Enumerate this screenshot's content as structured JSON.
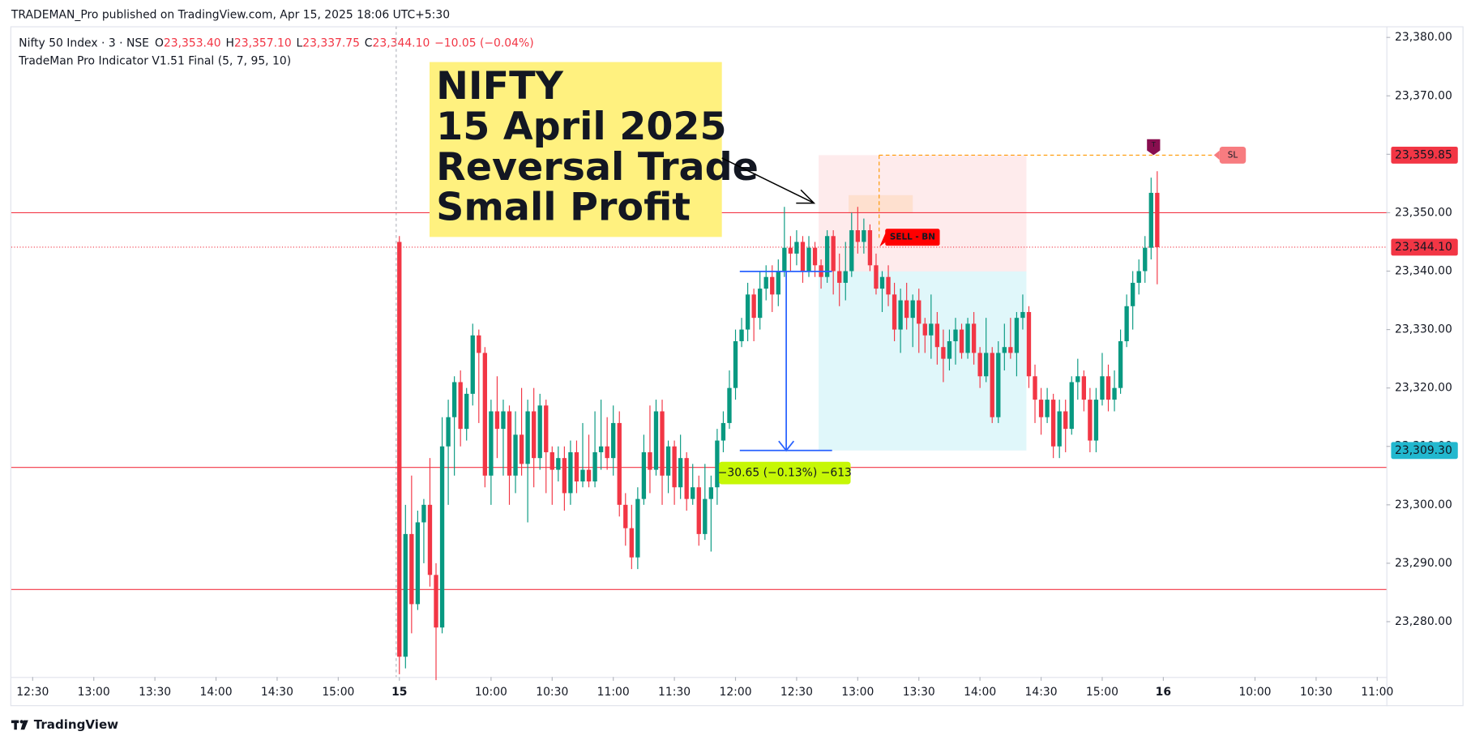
{
  "header": {
    "publisher": "TRADEMAN_Pro published on TradingView.com, Apr 15, 2025 18:06 UTC+5:30",
    "brand": "TradingView"
  },
  "chart_data": {
    "type": "candlestick",
    "symbol": "Nifty 50 Index · 3 · NSE",
    "legend_fields": [
      {
        "key": "O",
        "value": "23,353.40"
      },
      {
        "key": "H",
        "value": "23,357.10"
      },
      {
        "key": "L",
        "value": "23,337.75"
      },
      {
        "key": "C",
        "value": "23,344.10"
      }
    ],
    "change": "−10.05 (−0.04%)",
    "indicator": "TradeMan Pro Indicator V1.51 Final (5, 7, 95, 10)",
    "up_color": "#089981",
    "down_color": "#f23645",
    "ohlc": [
      [
        23345,
        23346,
        23271,
        23274
      ],
      [
        23274,
        23300,
        23272,
        23295
      ],
      [
        23295,
        23305,
        23278,
        23283
      ],
      [
        23283,
        23299,
        23282,
        23297
      ],
      [
        23297,
        23301,
        23290,
        23300
      ],
      [
        23300,
        23308,
        23286,
        23288
      ],
      [
        23288,
        23290,
        23270,
        23279
      ],
      [
        23279,
        23315,
        23278,
        23310
      ],
      [
        23310,
        23318,
        23300,
        23315
      ],
      [
        23315,
        23322,
        23305,
        23321
      ],
      [
        23321,
        23323,
        23310,
        23313
      ],
      [
        23313,
        23320,
        23311,
        23319
      ],
      [
        23319,
        23331,
        23317,
        23329
      ],
      [
        23329,
        23330,
        23314,
        23326
      ],
      [
        23326,
        23327,
        23303,
        23305
      ],
      [
        23305,
        23318,
        23300,
        23316
      ],
      [
        23316,
        23322,
        23308,
        23313
      ],
      [
        23313,
        23318,
        23305,
        23316
      ],
      [
        23316,
        23317,
        23300,
        23305
      ],
      [
        23305,
        23316,
        23302,
        23312
      ],
      [
        23312,
        23320,
        23305,
        23307
      ],
      [
        23307,
        23318,
        23297,
        23316
      ],
      [
        23316,
        23320,
        23303,
        23308
      ],
      [
        23308,
        23319,
        23306,
        23317
      ],
      [
        23317,
        23318,
        23302,
        23309
      ],
      [
        23309,
        23310,
        23300,
        23306
      ],
      [
        23306,
        23310,
        23304,
        23308
      ],
      [
        23308,
        23310,
        23299,
        23302
      ],
      [
        23302,
        23311,
        23300,
        23309
      ],
      [
        23309,
        23311,
        23302,
        23304
      ],
      [
        23304,
        23314,
        23303,
        23306
      ],
      [
        23306,
        23312,
        23303,
        23304
      ],
      [
        23304,
        23316,
        23303,
        23309
      ],
      [
        23309,
        23318,
        23306,
        23310
      ],
      [
        23310,
        23315,
        23306,
        23308
      ],
      [
        23308,
        23317,
        23305,
        23314
      ],
      [
        23314,
        23316,
        23298,
        23300
      ],
      [
        23300,
        23302,
        23293,
        23296
      ],
      [
        23296,
        23300,
        23289,
        23291
      ],
      [
        23291,
        23303,
        23289,
        23301
      ],
      [
        23301,
        23312,
        23300,
        23309
      ],
      [
        23309,
        23317,
        23302,
        23306
      ],
      [
        23306,
        23318,
        23305,
        23316
      ],
      [
        23316,
        23318,
        23300,
        23305
      ],
      [
        23305,
        23311,
        23302,
        23310
      ],
      [
        23310,
        23311,
        23300,
        23303
      ],
      [
        23303,
        23312,
        23301,
        23308
      ],
      [
        23308,
        23309,
        23299,
        23301
      ],
      [
        23301,
        23307,
        23300,
        23303
      ],
      [
        23303,
        23305,
        23293,
        23295
      ],
      [
        23295,
        23307,
        23294,
        23301
      ],
      [
        23301,
        23305,
        23292,
        23303
      ],
      [
        23303,
        23313,
        23300,
        23311
      ],
      [
        23311,
        23316,
        23309,
        23314
      ],
      [
        23314,
        23323,
        23313,
        23320
      ],
      [
        23320,
        23330,
        23318,
        23328
      ],
      [
        23328,
        23332,
        23327,
        23330
      ],
      [
        23330,
        23338,
        23328,
        23336
      ],
      [
        23336,
        23337,
        23328,
        23332
      ],
      [
        23332,
        23340,
        23330,
        23337
      ],
      [
        23337,
        23341,
        23335,
        23339
      ],
      [
        23339,
        23341,
        23333,
        23336
      ],
      [
        23336,
        23342,
        23334,
        23340
      ],
      [
        23340,
        23351,
        23339,
        23344
      ],
      [
        23344,
        23346,
        23340,
        23343
      ],
      [
        23343,
        23347,
        23341,
        23345
      ],
      [
        23345,
        23346,
        23338,
        23340
      ],
      [
        23340,
        23346,
        23339,
        23344
      ],
      [
        23344,
        23345,
        23339,
        23341
      ],
      [
        23341,
        23342,
        23337,
        23339
      ],
      [
        23339,
        23347,
        23338,
        23346
      ],
      [
        23346,
        23347,
        23336,
        23340
      ],
      [
        23340,
        23343,
        23334,
        23338
      ],
      [
        23338,
        23345,
        23335,
        23340
      ],
      [
        23340,
        23350,
        23339,
        23347
      ],
      [
        23347,
        23351,
        23343,
        23345
      ],
      [
        23345,
        23349,
        23343,
        23347
      ],
      [
        23347,
        23348,
        23340,
        23341
      ],
      [
        23341,
        23343,
        23336,
        23337
      ],
      [
        23337,
        23340,
        23333,
        23339
      ],
      [
        23339,
        23341,
        23334,
        23336
      ],
      [
        23336,
        23338,
        23328,
        23330
      ],
      [
        23330,
        23337,
        23326,
        23335
      ],
      [
        23335,
        23338,
        23330,
        23332
      ],
      [
        23332,
        23336,
        23327,
        23335
      ],
      [
        23335,
        23337,
        23326,
        23331
      ],
      [
        23331,
        23332,
        23326,
        23329
      ],
      [
        23329,
        23336,
        23325,
        23331
      ],
      [
        23331,
        23333,
        23324,
        23327
      ],
      [
        23327,
        23330,
        23321,
        23325
      ],
      [
        23325,
        23330,
        23323,
        23328
      ],
      [
        23328,
        23332,
        23324,
        23330
      ],
      [
        23330,
        23331,
        23325,
        23326
      ],
      [
        23326,
        23332,
        23325,
        23331
      ],
      [
        23331,
        23333,
        23324,
        23326
      ],
      [
        23326,
        23327,
        23320,
        23322
      ],
      [
        23322,
        23332,
        23321,
        23326
      ],
      [
        23326,
        23327,
        23314,
        23315
      ],
      [
        23315,
        23328,
        23314,
        23326
      ],
      [
        23326,
        23331,
        23323,
        23327
      ],
      [
        23327,
        23332,
        23325,
        23326
      ],
      [
        23326,
        23333,
        23322,
        23332
      ],
      [
        23332,
        23336,
        23330,
        23333
      ],
      [
        23333,
        23334,
        23320,
        23322
      ],
      [
        23322,
        23324,
        23314,
        23318
      ],
      [
        23318,
        23320,
        23312,
        23315
      ],
      [
        23315,
        23320,
        23314,
        23318
      ],
      [
        23318,
        23319,
        23308,
        23310
      ],
      [
        23310,
        23318,
        23308,
        23316
      ],
      [
        23316,
        23318,
        23309,
        23313
      ],
      [
        23313,
        23322,
        23312,
        23321
      ],
      [
        23321,
        23325,
        23318,
        23322
      ],
      [
        23322,
        23323,
        23316,
        23318
      ],
      [
        23318,
        23320,
        23309,
        23311
      ],
      [
        23311,
        23320,
        23309,
        23318
      ],
      [
        23318,
        23326,
        23317,
        23322
      ],
      [
        23322,
        23324,
        23316,
        23318
      ],
      [
        23318,
        23323,
        23316,
        23320
      ],
      [
        23320,
        23330,
        23319,
        23328
      ],
      [
        23328,
        23336,
        23327,
        23334
      ],
      [
        23334,
        23340,
        23330,
        23338
      ],
      [
        23338,
        23342,
        23336,
        23340
      ],
      [
        23340,
        23346,
        23338,
        23344
      ],
      [
        23344,
        23356,
        23342,
        23353.4
      ],
      [
        23353.4,
        23357.1,
        23337.75,
        23344.1
      ]
    ],
    "xlim": [
      -63.5,
      161.5
    ],
    "xticks": [
      {
        "value": -60,
        "label": "12:30"
      },
      {
        "value": -50,
        "label": "13:00"
      },
      {
        "value": -40,
        "label": "13:30"
      },
      {
        "value": -30,
        "label": "14:00"
      },
      {
        "value": -20,
        "label": "14:30"
      },
      {
        "value": -10,
        "label": "15:00"
      },
      {
        "value": 0,
        "label": "15"
      },
      {
        "value": 15,
        "label": "10:00"
      },
      {
        "value": 25,
        "label": "10:30"
      },
      {
        "value": 35,
        "label": "11:00"
      },
      {
        "value": 45,
        "label": "11:30"
      },
      {
        "value": 55,
        "label": "12:00"
      },
      {
        "value": 65,
        "label": "12:30"
      },
      {
        "value": 75,
        "label": "13:00"
      },
      {
        "value": 85,
        "label": "13:30"
      },
      {
        "value": 95,
        "label": "14:00"
      },
      {
        "value": 105,
        "label": "14:30"
      },
      {
        "value": 115,
        "label": "15:00"
      },
      {
        "value": 125,
        "label": "16"
      },
      {
        "value": 140,
        "label": "10:00"
      },
      {
        "value": 150,
        "label": "10:30"
      },
      {
        "value": 160,
        "label": "11:00"
      }
    ],
    "ylim": [
      23265.7,
      23381.9
    ],
    "yticks": [
      {
        "value": 23280,
        "label": "23,280.00"
      },
      {
        "value": 23290,
        "label": "23,290.00"
      },
      {
        "value": 23300,
        "label": "23,300.00"
      },
      {
        "value": 23310,
        "label": "23,310.00"
      },
      {
        "value": 23320,
        "label": "23,320.00"
      },
      {
        "value": 23330,
        "label": "23,330.00"
      },
      {
        "value": 23340,
        "label": "23,340.00"
      },
      {
        "value": 23350,
        "label": "23,350.00"
      },
      {
        "value": 23360,
        "label": "23,360.00"
      },
      {
        "value": 23370,
        "label": "23,370.00"
      },
      {
        "value": 23380,
        "label": "23,380.00"
      }
    ],
    "levels": [
      23350,
      23306.4,
      23285.5
    ],
    "price_labels": [
      {
        "value": 23359.85,
        "label": "23,359.85",
        "color": "#f23645"
      },
      {
        "value": 23344.1,
        "label": "23,344.10",
        "color": "#f23645"
      },
      {
        "value": 23309.3,
        "label": "23,309.30",
        "color": "#22b8cf"
      }
    ],
    "trade": {
      "stop": 23359.85,
      "entry": 23339.95,
      "target": 23309.3,
      "stop_label": "SL",
      "signal": "SELL - BN",
      "marker": "T"
    },
    "measure_label": "−30.65 (−0.13%) −613",
    "annotation": [
      "NIFTY",
      "15 April 2025",
      "Reversal Trade",
      "Small Profit"
    ]
  }
}
